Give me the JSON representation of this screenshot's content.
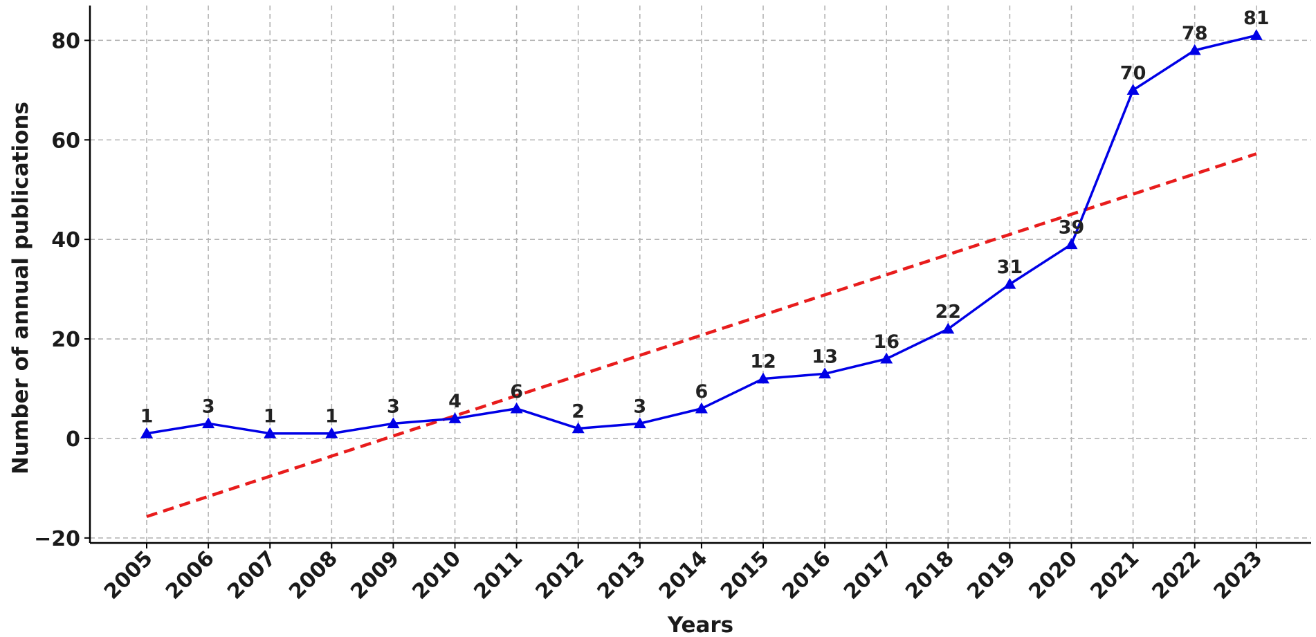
{
  "chart_data": {
    "type": "line",
    "xlabel": "Years",
    "ylabel": "Number of annual publications",
    "ylim": [
      -21,
      87
    ],
    "yticks": [
      -20,
      0,
      20,
      40,
      60,
      80
    ],
    "ytick_labels": [
      "−20",
      "0",
      "20",
      "40",
      "60",
      "80"
    ],
    "grid": true,
    "x": [
      "2005",
      "2006",
      "2007",
      "2008",
      "2009",
      "2010",
      "2011",
      "2012",
      "2013",
      "2014",
      "2015",
      "2016",
      "2017",
      "2018",
      "2019",
      "2020",
      "2021",
      "2022",
      "2023"
    ],
    "series": [
      {
        "values": [
          1,
          3,
          1,
          1,
          3,
          4,
          6,
          2,
          3,
          6,
          12,
          13,
          16,
          22,
          31,
          39,
          70,
          78,
          81
        ],
        "color": "#0000e6",
        "marker": "triangle",
        "line_style": "solid",
        "data_labels": true
      },
      {
        "values_at_ends": [
          -15.7,
          57.2
        ],
        "color": "#e81c1c",
        "line_style": "dashed",
        "kind": "linear trend"
      }
    ]
  }
}
